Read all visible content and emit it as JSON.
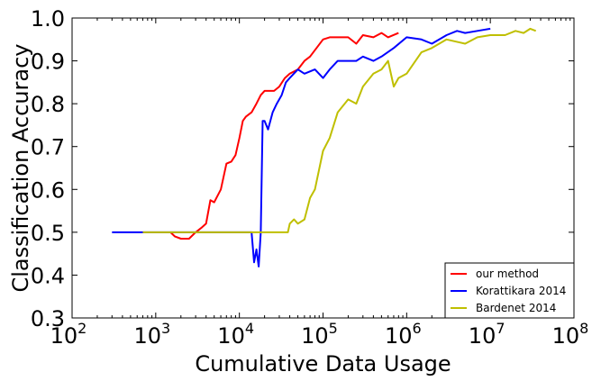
{
  "chart_data": {
    "type": "line",
    "xlabel": "Cumulative Data Usage",
    "ylabel": "Classification Accuracy",
    "xscale": "log",
    "xlim": [
      100,
      100000000
    ],
    "ylim": [
      0.3,
      1.0
    ],
    "x_ticks": [
      {
        "base": "10",
        "exp": "2",
        "value": 100
      },
      {
        "base": "10",
        "exp": "3",
        "value": 1000
      },
      {
        "base": "10",
        "exp": "4",
        "value": 10000
      },
      {
        "base": "10",
        "exp": "5",
        "value": 100000
      },
      {
        "base": "10",
        "exp": "6",
        "value": 1000000
      },
      {
        "base": "10",
        "exp": "7",
        "value": 10000000
      },
      {
        "base": "10",
        "exp": "8",
        "value": 100000000
      }
    ],
    "y_ticks": [
      "0.3",
      "0.4",
      "0.5",
      "0.6",
      "0.7",
      "0.8",
      "0.9",
      "1.0"
    ],
    "grid": false,
    "legend": "lower-right",
    "series": [
      {
        "name": "our method",
        "color": "#ff0000",
        "x": [
          1500,
          1700,
          2000,
          2500,
          3000,
          3500,
          4000,
          4500,
          5000,
          6000,
          7000,
          8000,
          9000,
          10000,
          11000,
          12000,
          14000,
          16000,
          18000,
          20000,
          23000,
          26000,
          30000,
          35000,
          40000,
          50000,
          60000,
          70000,
          80000,
          100000,
          120000,
          150000,
          200000,
          250000,
          300000,
          400000,
          500000,
          600000,
          800000
        ],
        "y": [
          0.5,
          0.49,
          0.485,
          0.485,
          0.5,
          0.51,
          0.52,
          0.575,
          0.57,
          0.6,
          0.66,
          0.665,
          0.68,
          0.72,
          0.76,
          0.77,
          0.78,
          0.8,
          0.82,
          0.83,
          0.83,
          0.83,
          0.84,
          0.86,
          0.87,
          0.88,
          0.9,
          0.91,
          0.925,
          0.95,
          0.955,
          0.955,
          0.955,
          0.94,
          0.96,
          0.955,
          0.965,
          0.955,
          0.965
        ]
      },
      {
        "name": "Korattikara 2014",
        "color": "#0000ff",
        "x": [
          300,
          500,
          1000,
          2000,
          5000,
          10000,
          14000,
          15000,
          16000,
          17000,
          18000,
          19000,
          20000,
          22000,
          25000,
          28000,
          32000,
          36000,
          40000,
          50000,
          60000,
          80000,
          100000,
          120000,
          150000,
          200000,
          250000,
          300000,
          400000,
          500000,
          700000,
          1000000,
          1500000,
          2000000,
          3000000,
          4000000,
          5000000,
          7000000,
          10000000
        ],
        "y": [
          0.5,
          0.5,
          0.5,
          0.5,
          0.5,
          0.5,
          0.5,
          0.43,
          0.46,
          0.42,
          0.5,
          0.76,
          0.76,
          0.74,
          0.78,
          0.8,
          0.82,
          0.85,
          0.86,
          0.88,
          0.87,
          0.88,
          0.86,
          0.88,
          0.9,
          0.9,
          0.9,
          0.91,
          0.9,
          0.91,
          0.93,
          0.955,
          0.95,
          0.94,
          0.96,
          0.97,
          0.965,
          0.97,
          0.975
        ]
      },
      {
        "name": "Bardenet 2014",
        "color": "#bfbf00",
        "x": [
          700,
          1000,
          2000,
          5000,
          10000,
          20000,
          38000,
          40000,
          45000,
          50000,
          60000,
          70000,
          80000,
          100000,
          120000,
          150000,
          200000,
          250000,
          300000,
          400000,
          500000,
          600000,
          700000,
          800000,
          1000000,
          1500000,
          2000000,
          3000000,
          5000000,
          7000000,
          10000000,
          15000000,
          20000000,
          25000000,
          30000000,
          35000000
        ],
        "y": [
          0.5,
          0.5,
          0.5,
          0.5,
          0.5,
          0.5,
          0.5,
          0.52,
          0.53,
          0.52,
          0.53,
          0.58,
          0.6,
          0.69,
          0.72,
          0.78,
          0.81,
          0.8,
          0.84,
          0.87,
          0.88,
          0.9,
          0.84,
          0.86,
          0.87,
          0.92,
          0.93,
          0.95,
          0.94,
          0.955,
          0.96,
          0.96,
          0.97,
          0.965,
          0.975,
          0.97
        ]
      }
    ]
  }
}
